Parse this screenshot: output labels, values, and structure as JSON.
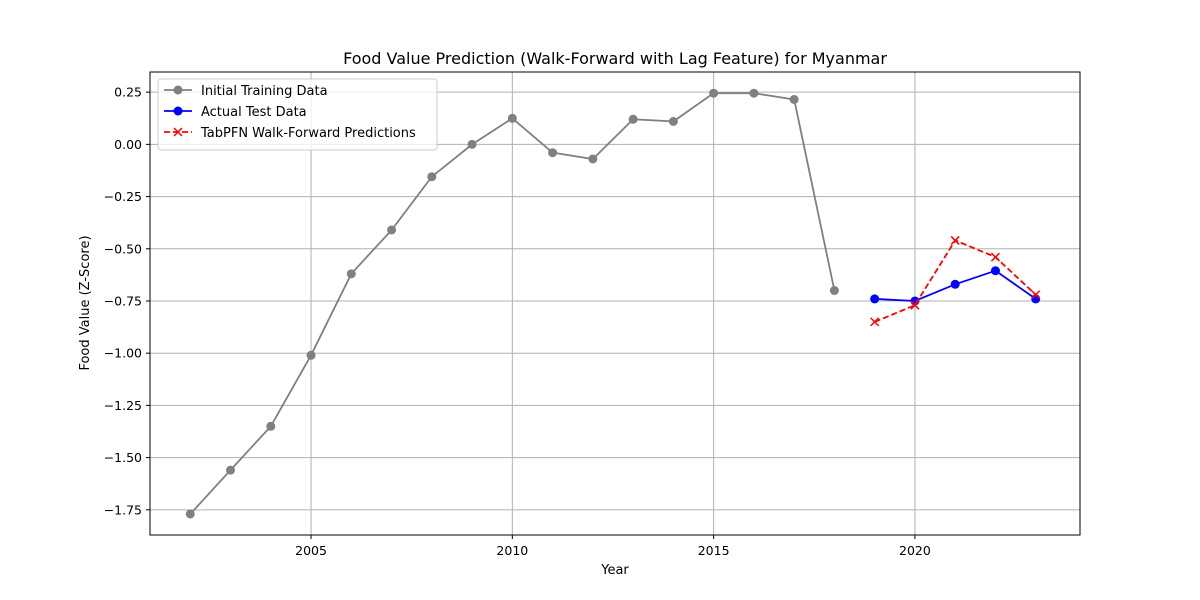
{
  "chart_data": {
    "type": "line",
    "title": "Food Value Prediction (Walk-Forward with Lag Feature) for Myanmar",
    "xlabel": "Year",
    "ylabel": "Food Value (Z-Score)",
    "xlim": [
      2002,
      2024
    ],
    "ylim": [
      -1.87,
      2.35
    ],
    "x_ticks": [
      2005,
      2010,
      2015,
      2020
    ],
    "y_ticks": [
      0.25,
      0.0,
      -0.25,
      -0.5,
      -0.75,
      -1.0,
      -1.25,
      -1.5,
      -1.75
    ],
    "x_tick_labels": [
      "2005",
      "2010",
      "2015",
      "2020"
    ],
    "y_tick_labels": [
      "0.25",
      "0.00",
      "−0.25",
      "−0.50",
      "−0.75",
      "−1.00",
      "−1.25",
      "−1.50",
      "−1.75"
    ],
    "grid": true,
    "legend_position": "top-left",
    "series": [
      {
        "name": "Initial Training Data",
        "color": "#808080",
        "marker": "circle",
        "linestyle": "solid",
        "x": [
          2002,
          2003,
          2004,
          2005,
          2006,
          2007,
          2008,
          2009,
          2010,
          2011,
          2012,
          2013,
          2014,
          2015,
          2016,
          2017,
          2018
        ],
        "y": [
          -1.77,
          -1.56,
          -1.35,
          -1.01,
          -0.62,
          -0.41,
          -0.155,
          0.0,
          0.125,
          -0.04,
          -0.07,
          0.12,
          0.11,
          0.245,
          0.245,
          0.215,
          -0.7
        ]
      },
      {
        "name": "Actual Test Data",
        "color": "#0000ff",
        "marker": "circle",
        "linestyle": "solid",
        "x": [
          2019,
          2020,
          2021,
          2022,
          2023
        ],
        "y": [
          -0.74,
          -0.75,
          -0.67,
          -0.605,
          -0.74
        ]
      },
      {
        "name": "TabPFN Walk-Forward Predictions",
        "color": "#ff0000",
        "marker": "x",
        "linestyle": "dashed",
        "x": [
          2019,
          2020,
          2021,
          2022,
          2023
        ],
        "y": [
          -0.85,
          -0.77,
          -0.46,
          -0.54,
          -0.72
        ]
      }
    ]
  }
}
